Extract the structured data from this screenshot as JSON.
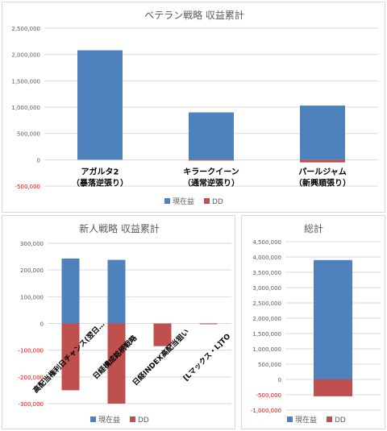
{
  "chart_data": [
    {
      "type": "bar",
      "title": "ベテラン戦略 収益累計",
      "categories": [
        "アガルタ2\n（暴落逆張り）",
        "キラークイーン\n（通常逆張り）",
        "パールジャム\n（新興順張り）"
      ],
      "series": [
        {
          "name": "現在益",
          "values": [
            2080000,
            900000,
            1030000
          ],
          "color": "#4f81bd"
        },
        {
          "name": "DD",
          "values": [
            0,
            -5000,
            -50000
          ],
          "color": "#c0504d"
        }
      ],
      "ylim": [
        -500000,
        2500000
      ],
      "yticks": [
        2500000,
        2000000,
        1500000,
        1000000,
        500000,
        0,
        -500000
      ],
      "ytick_labels": [
        "2,500,000",
        "2,000,000",
        "1,500,000",
        "1,000,000",
        "500,000",
        "0",
        "-500,000"
      ],
      "legend": "bottom",
      "grid": true
    },
    {
      "type": "bar",
      "title": "新人戦略 収益累計",
      "categories": [
        "高配当権利日チャンス(翌日…",
        "日経構成銘柄戦略",
        "日経INDEX高配当狙い",
        "[Lマックス・L]TO"
      ],
      "series": [
        {
          "name": "現在益",
          "values": [
            243000,
            238000,
            0,
            0
          ],
          "color": "#4f81bd"
        },
        {
          "name": "DD",
          "values": [
            -250000,
            -300000,
            -85000,
            -3000
          ],
          "color": "#c0504d"
        }
      ],
      "ylim": [
        -300000,
        300000
      ],
      "yticks": [
        300000,
        200000,
        100000,
        0,
        -100000,
        -200000,
        -300000
      ],
      "ytick_labels": [
        "300,000",
        "200,000",
        "100,000",
        "0",
        "-100,000",
        "-200,000",
        "-300,000"
      ],
      "legend": "bottom",
      "grid": true
    },
    {
      "type": "bar",
      "title": "総計",
      "categories": [
        ""
      ],
      "series": [
        {
          "name": "現在益",
          "values": [
            3900000
          ],
          "color": "#4f81bd"
        },
        {
          "name": "DD",
          "values": [
            -550000
          ],
          "color": "#c0504d"
        }
      ],
      "ylim": [
        -1000000,
        4500000
      ],
      "yticks": [
        4500000,
        4000000,
        3500000,
        3000000,
        2500000,
        2000000,
        1500000,
        1000000,
        500000,
        0,
        -500000,
        -1000000
      ],
      "ytick_labels": [
        "4,500,000",
        "4,000,000",
        "3,500,000",
        "3,000,000",
        "2,500,000",
        "2,000,000",
        "1,500,000",
        "1,000,000",
        "500,000",
        "0",
        "-500,000",
        "-1,000,000"
      ],
      "legend": "bottom",
      "grid": true
    }
  ]
}
